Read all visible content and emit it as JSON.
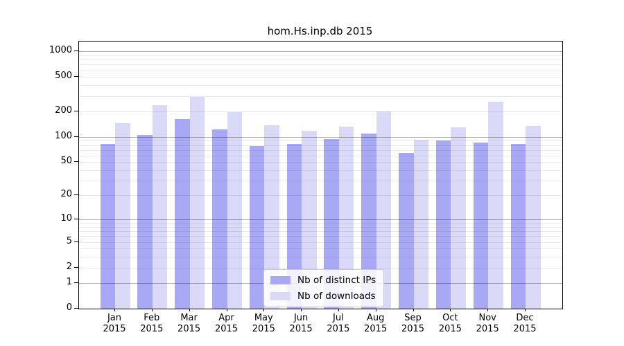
{
  "title": "hom.Hs.inp.db 2015",
  "chart_data": {
    "type": "bar",
    "title": "hom.Hs.inp.db 2015",
    "categories": [
      "Jan 2015",
      "Feb 2015",
      "Mar 2015",
      "Apr 2015",
      "May 2015",
      "Jun 2015",
      "Jul 2015",
      "Aug 2015",
      "Sep 2015",
      "Oct 2015",
      "Nov 2015",
      "Dec 2015"
    ],
    "series": [
      {
        "name": "Nb of distinct IPs",
        "color": "#a8a8f5",
        "values": [
          83,
          105,
          162,
          121,
          78,
          82,
          94,
          110,
          65,
          91,
          86,
          82
        ]
      },
      {
        "name": "Nb of downloads",
        "color": "#dadaf8",
        "values": [
          144,
          233,
          293,
          195,
          137,
          117,
          132,
          199,
          92,
          130,
          259,
          135
        ]
      }
    ],
    "yscale": "log1p",
    "ylim": [
      0,
      1300
    ],
    "ytick_labels": [
      "1000",
      "500",
      "200",
      "100",
      "50",
      "20",
      "10",
      "5",
      "2",
      "1",
      "0"
    ],
    "ytick_values": [
      1000,
      500,
      200,
      100,
      50,
      20,
      10,
      5,
      2,
      1,
      0
    ],
    "grid": "on",
    "legend_position": "bottom-center",
    "colors": {
      "major_gridline": "#b0b0b0",
      "minor_gridline": "#ebebeb",
      "axis": "#000000"
    }
  }
}
